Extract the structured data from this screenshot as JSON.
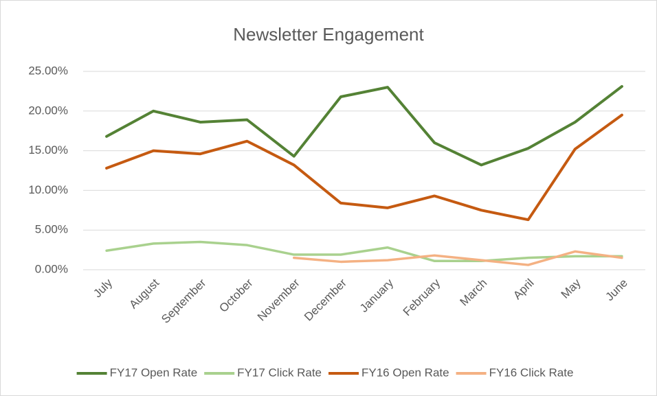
{
  "chart_data": {
    "type": "line",
    "title": "Newsletter Engagement",
    "categories": [
      "July",
      "August",
      "September",
      "October",
      "November",
      "December",
      "January",
      "February",
      "March",
      "April",
      "May",
      "June"
    ],
    "series": [
      {
        "name": "FY17 Open Rate",
        "color": "#548235",
        "values": [
          16.8,
          20.0,
          18.6,
          18.9,
          14.3,
          21.8,
          23.0,
          16.0,
          13.2,
          15.3,
          18.6,
          23.1
        ]
      },
      {
        "name": "FY17 Click Rate",
        "color": "#a9d18e",
        "values": [
          2.4,
          3.3,
          3.5,
          3.1,
          1.9,
          1.9,
          2.8,
          1.1,
          1.1,
          1.5,
          1.7,
          1.7
        ]
      },
      {
        "name": "FY16 Open Rate",
        "color": "#c55a11",
        "values": [
          12.8,
          15.0,
          14.6,
          16.2,
          13.2,
          8.4,
          7.8,
          9.3,
          7.5,
          6.3,
          15.2,
          19.5
        ]
      },
      {
        "name": "FY16 Click Rate",
        "color": "#f4b183",
        "values": [
          null,
          null,
          null,
          null,
          1.5,
          1.0,
          1.2,
          1.8,
          1.2,
          0.6,
          2.3,
          1.5
        ]
      }
    ],
    "ylim": [
      0,
      25
    ],
    "yticks": [
      {
        "value": 0,
        "label": "0.00%"
      },
      {
        "value": 5,
        "label": "5.00%"
      },
      {
        "value": 10,
        "label": "10.00%"
      },
      {
        "value": 15,
        "label": "15.00%"
      },
      {
        "value": 20,
        "label": "20.00%"
      },
      {
        "value": 25,
        "label": "25.00%"
      }
    ],
    "grid": true,
    "legend": "bottom"
  }
}
